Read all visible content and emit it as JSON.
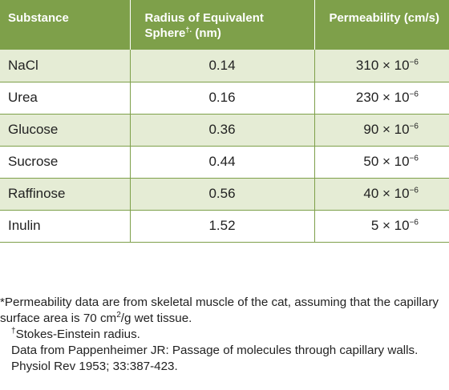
{
  "table": {
    "headers": {
      "substance": "Substance",
      "radius_line1": "Radius of Equivalent",
      "radius_line2": "Sphere",
      "radius_dagger": "†",
      "radius_dot": ".",
      "radius_unit": " (nm)",
      "permeability": "Permeability (cm/s)"
    },
    "rows": [
      {
        "substance": "NaCl",
        "radius": "0.14",
        "perm_coef": "310",
        "perm_exp": "−6"
      },
      {
        "substance": "Urea",
        "radius": "0.16",
        "perm_coef": "230",
        "perm_exp": "−6"
      },
      {
        "substance": "Glucose",
        "radius": "0.36",
        "perm_coef": "90",
        "perm_exp": "−6"
      },
      {
        "substance": "Sucrose",
        "radius": "0.44",
        "perm_coef": "50",
        "perm_exp": "−6"
      },
      {
        "substance": "Raffinose",
        "radius": "0.56",
        "perm_coef": "40",
        "perm_exp": "−6"
      },
      {
        "substance": "Inulin",
        "radius": "1.52",
        "perm_coef": "5",
        "perm_exp": "−6"
      }
    ],
    "times_ten": " × 10"
  },
  "footnotes": {
    "note1_a": "*Permeability data are from skeletal muscle of the cat, assuming that the capillary surface area is 70 cm",
    "note1_sup": "2",
    "note1_b": "/g wet tissue.",
    "note2_mark": "†",
    "note2_text": "Stokes-Einstein radius.",
    "note3": "Data from Pappenheimer JR: Passage of molecules through capillary walls. Physiol Rev 1953; 33:387-423."
  },
  "colors": {
    "header_bg": "#7ea04a",
    "stripe_bg": "#e5ecd5",
    "border": "#7ea04a"
  }
}
